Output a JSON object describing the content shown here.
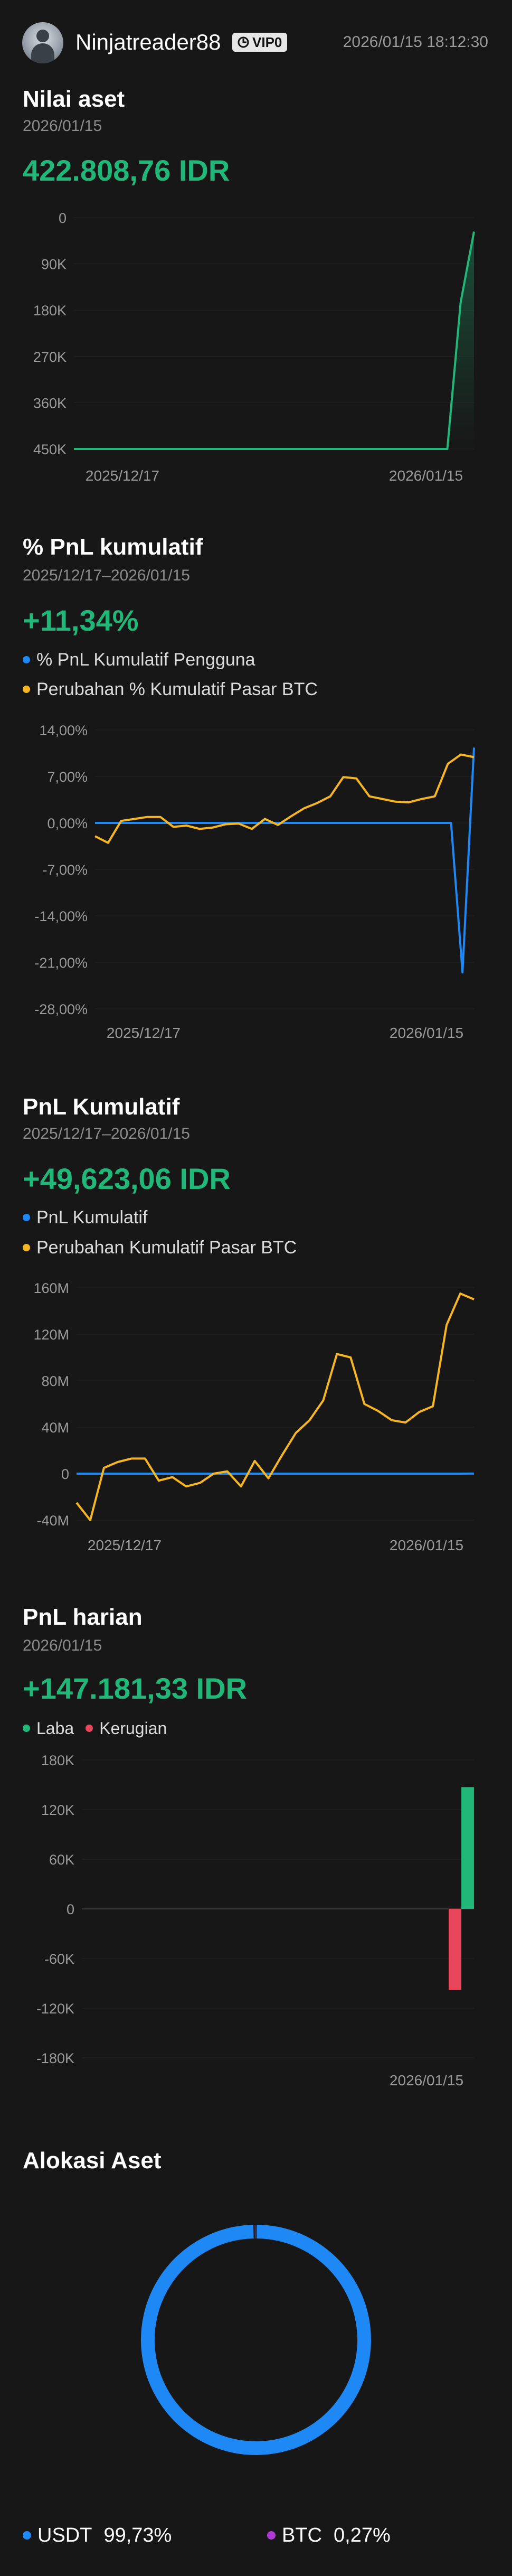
{
  "header": {
    "username": "Ninjatreader88",
    "vip_label": "VIP0",
    "timestamp": "2026/01/15 18:12:30"
  },
  "asset_value": {
    "title": "Nilai aset",
    "date": "2026/01/15",
    "value": "422.808,76 IDR",
    "chart_data": {
      "type": "area",
      "x_labels": [
        "2025/12/17",
        "2026/01/15"
      ],
      "y_ticks": [
        "0",
        "90K",
        "180K",
        "270K",
        "360K",
        "450K"
      ],
      "ylim": [
        0,
        450000
      ],
      "series": [
        {
          "color": "#21b778",
          "values": [
            0,
            0,
            0,
            0,
            0,
            0,
            0,
            0,
            0,
            0,
            0,
            0,
            0,
            0,
            0,
            0,
            0,
            0,
            0,
            0,
            0,
            0,
            0,
            0,
            0,
            0,
            0,
            0,
            0,
            285000,
            422808
          ]
        }
      ]
    }
  },
  "pnl_pct": {
    "title": "% PnL kumulatif",
    "date_range": "2025/12/17–2026/01/15",
    "value": "+11,34%",
    "legend": [
      {
        "label": "% PnL Kumulatif Pengguna",
        "color": "#1e88f5"
      },
      {
        "label": "Perubahan % Kumulatif Pasar BTC",
        "color": "#f5b621"
      }
    ],
    "chart_data": {
      "type": "line",
      "x_labels": [
        "2025/12/17",
        "2026/01/15"
      ],
      "y_ticks": [
        "14,00%",
        "7,00%",
        "0,00%",
        "-7,00%",
        "-14,00%",
        "-21,00%",
        "-28,00%"
      ],
      "ylim": [
        -28,
        14
      ],
      "series": [
        {
          "name": "% PnL Kumulatif Pengguna",
          "color": "#1e88f5",
          "values": [
            0,
            0,
            0,
            0,
            0,
            0,
            0,
            0,
            0,
            0,
            0,
            0,
            0,
            0,
            0,
            0,
            0,
            0,
            0,
            0,
            0,
            0,
            0,
            0,
            0,
            0,
            0,
            0,
            0,
            0,
            0,
            0,
            -22.5,
            11.34
          ]
        },
        {
          "name": "Perubahan % Kumulatif Pasar BTC",
          "color": "#f5b621",
          "values": [
            -2,
            -3,
            0.3,
            0.6,
            0.9,
            0.9,
            -0.6,
            -0.4,
            -0.9,
            -0.7,
            -0.2,
            -0.1,
            -0.9,
            0.6,
            -0.3,
            1.0,
            2.2,
            3.0,
            4.0,
            6.9,
            6.7,
            4.0,
            3.6,
            3.2,
            3.1,
            3.6,
            4.0,
            8.9,
            10.3,
            9.9
          ]
        }
      ]
    }
  },
  "pnl_cum": {
    "title": "PnL Kumulatif",
    "date_range": "2025/12/17–2026/01/15",
    "value": "+49,623,06 IDR",
    "legend": [
      {
        "label": "PnL Kumulatif",
        "color": "#1e88f5"
      },
      {
        "label": "Perubahan Kumulatif Pasar BTC",
        "color": "#f5b621"
      }
    ],
    "chart_data": {
      "type": "line",
      "x_labels": [
        "2025/12/17",
        "2026/01/15"
      ],
      "y_ticks": [
        "160M",
        "120M",
        "80M",
        "40M",
        "0",
        "-40M"
      ],
      "ylim": [
        -40,
        160
      ],
      "series": [
        {
          "name": "PnL Kumulatif",
          "color": "#1e88f5",
          "values": [
            0,
            0,
            0,
            0,
            0,
            0,
            0,
            0,
            0,
            0,
            0,
            0,
            0,
            0,
            0,
            0,
            0,
            0,
            0,
            0,
            0,
            0,
            0,
            0,
            0,
            0,
            0,
            0,
            0,
            0.05
          ]
        },
        {
          "name": "Perubahan Kumulatif Pasar BTC",
          "color": "#f5b621",
          "values": [
            -25,
            -40,
            5,
            10,
            13,
            13,
            -6,
            -3,
            -11,
            -8,
            0,
            2,
            -11,
            11,
            -4,
            16,
            35,
            46,
            63,
            103,
            100,
            60,
            54,
            46,
            44,
            53,
            58,
            128,
            155,
            150
          ]
        }
      ]
    }
  },
  "pnl_daily": {
    "title": "PnL harian",
    "date": "2026/01/15",
    "value": "+147.181,33 IDR",
    "legend": [
      {
        "label": "Laba",
        "color": "#21b778"
      },
      {
        "label": "Kerugian",
        "color": "#e8465a"
      }
    ],
    "chart_data": {
      "type": "bar",
      "x_labels": [
        "2026/01/15"
      ],
      "y_ticks": [
        "180K",
        "120K",
        "60K",
        "0",
        "-60K",
        "-120K",
        "-180K"
      ],
      "ylim": [
        -180000,
        180000
      ],
      "values": [
        -98000,
        147181.33
      ]
    }
  },
  "allocation": {
    "title": "Alokasi Aset",
    "chart_data": {
      "type": "pie",
      "slices": [
        {
          "label": "USDT",
          "value": 99.73,
          "display": "99,73%",
          "color": "#1e88f5"
        },
        {
          "label": "BTC",
          "value": 0.27,
          "display": "0,27%",
          "color": "#b03ad6"
        }
      ]
    }
  }
}
